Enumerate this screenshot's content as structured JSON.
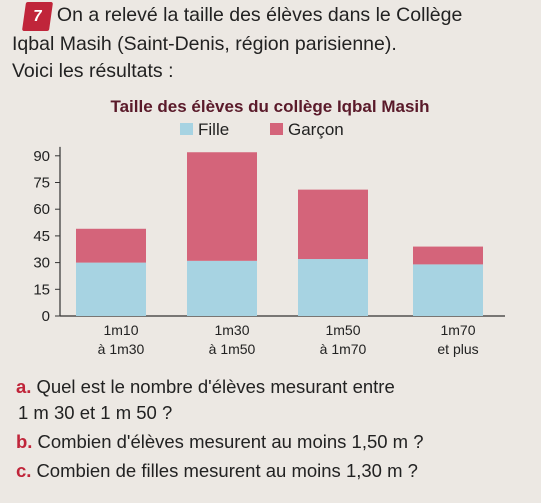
{
  "exercise": {
    "number": "7",
    "intro_line1": "On a relevé la taille des élèves dans le Collège",
    "intro_line2": "Iqbal Masih (Saint-Denis, région parisienne).",
    "intro_line3": "Voici les résultats :"
  },
  "chart_data": {
    "type": "bar",
    "stacked": true,
    "title": "Taille des élèves du collège Iqbal Masih",
    "categories": [
      [
        "1m10",
        "à 1m30"
      ],
      [
        "1m30",
        "à 1m50"
      ],
      [
        "1m50",
        "à 1m70"
      ],
      [
        "1m70",
        "et plus"
      ]
    ],
    "series": [
      {
        "name": "Fille",
        "values": [
          30,
          31,
          32,
          29
        ],
        "color": "#a7d3e2"
      },
      {
        "name": "Garçon",
        "values": [
          19,
          61,
          39,
          10
        ],
        "color": "#d4647a"
      }
    ],
    "yticks": [
      0,
      15,
      30,
      45,
      60,
      75,
      90
    ],
    "ylim": [
      0,
      95
    ],
    "legend": "top-center",
    "grid": false
  },
  "questions": [
    {
      "label": "a.",
      "text_line1": "Quel est le nombre d'élèves mesurant entre",
      "text_line2": "1 m 30 et 1 m 50 ?"
    },
    {
      "label": "b.",
      "text_line1": "Combien d'élèves mesurent au moins 1,50 m ?"
    },
    {
      "label": "c.",
      "text_line1": "Combien de filles mesurent au moins 1,30 m ?"
    }
  ]
}
